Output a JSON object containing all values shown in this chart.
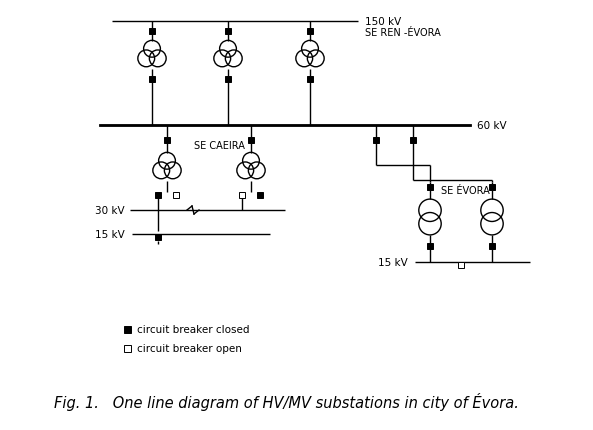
{
  "title": "Fig. 1.   One line diagram of HV/MV substations in city of Évora.",
  "title_fontsize": 10.5,
  "background_color": "#ffffff",
  "text_color": "#000000",
  "line_color": "#000000",
  "label_150kV": "150 kV",
  "label_60kV": "60 kV",
  "label_30kV": "30 kV",
  "label_15kV_caeira": "15 kV",
  "label_15kV_evora": "15 kV",
  "label_se_ren": "SE REN -ÉVORA",
  "label_se_caeira": "SE CAEIRA",
  "label_se_evora": "SE ÉVORA",
  "legend_closed": "circuit breaker closed",
  "legend_open": "circuit breaker open",
  "figw": 5.93,
  "figh": 4.31,
  "dpi": 100
}
